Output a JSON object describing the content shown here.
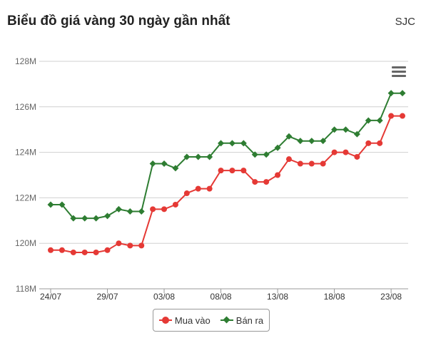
{
  "header": {
    "title": "Biểu đồ giá vàng 30 ngày gần nhất",
    "brand": "SJC"
  },
  "chart_data": {
    "type": "line",
    "ylim": [
      118,
      128
    ],
    "y_ticks": [
      118,
      120,
      122,
      124,
      126,
      128
    ],
    "y_tick_labels": [
      "118M",
      "120M",
      "122M",
      "124M",
      "126M",
      "128M"
    ],
    "x_tick_labels": [
      "24/07",
      "29/07",
      "03/08",
      "08/08",
      "13/08",
      "18/08",
      "23/08"
    ],
    "x_tick_indices": [
      0,
      5,
      10,
      15,
      20,
      25,
      30
    ],
    "grid": true,
    "legend_position": "bottom-center",
    "series": [
      {
        "name": "Mua vào",
        "color": "#e53935",
        "marker": "circle",
        "values": [
          119.7,
          119.7,
          119.6,
          119.6,
          119.6,
          119.7,
          120.0,
          119.9,
          119.9,
          121.5,
          121.5,
          121.7,
          122.2,
          122.4,
          122.4,
          123.2,
          123.2,
          123.2,
          122.7,
          122.7,
          123.0,
          123.7,
          123.5,
          123.5,
          123.5,
          124.0,
          124.0,
          123.8,
          124.4,
          124.4,
          125.6,
          125.6
        ]
      },
      {
        "name": "Bán ra",
        "color": "#2e7d32",
        "marker": "diamond",
        "values": [
          121.7,
          121.7,
          121.1,
          121.1,
          121.1,
          121.2,
          121.5,
          121.4,
          121.4,
          123.5,
          123.5,
          123.3,
          123.8,
          123.8,
          123.8,
          124.4,
          124.4,
          124.4,
          123.9,
          123.9,
          124.2,
          124.7,
          124.5,
          124.5,
          124.5,
          125.0,
          125.0,
          124.8,
          125.4,
          125.4,
          126.6,
          126.6
        ]
      }
    ]
  }
}
